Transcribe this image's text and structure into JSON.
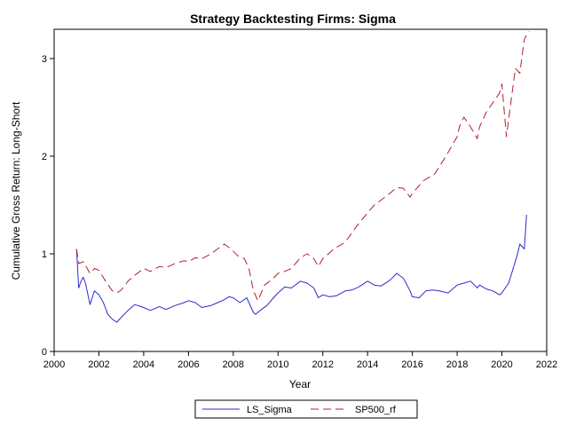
{
  "chart_data": {
    "type": "line",
    "title": "Strategy Backtesting  Firms: Sigma",
    "xlabel": "Year",
    "ylabel": "Cumulative Gross Return: Long-Short",
    "xlim": [
      2000,
      2022
    ],
    "ylim": [
      0,
      3.3
    ],
    "x_ticks": [
      2000,
      2002,
      2004,
      2006,
      2008,
      2010,
      2012,
      2014,
      2016,
      2018,
      2020,
      2022
    ],
    "y_ticks": [
      0,
      1,
      2,
      3
    ],
    "grid": false,
    "legend_position": "bottom",
    "series": [
      {
        "name": "LS_Sigma",
        "color": "#2b2bd0",
        "style": "solid",
        "x": [
          2001.0,
          2001.1,
          2001.2,
          2001.3,
          2001.4,
          2001.6,
          2001.8,
          2002.0,
          2002.2,
          2002.4,
          2002.6,
          2002.8,
          2003.0,
          2003.3,
          2003.6,
          2004.0,
          2004.3,
          2004.7,
          2005.0,
          2005.4,
          2005.8,
          2006.0,
          2006.3,
          2006.6,
          2007.0,
          2007.3,
          2007.6,
          2007.8,
          2008.0,
          2008.3,
          2008.6,
          2008.9,
          2009.0,
          2009.2,
          2009.5,
          2009.8,
          2010.0,
          2010.3,
          2010.6,
          2011.0,
          2011.3,
          2011.6,
          2011.8,
          2012.0,
          2012.3,
          2012.6,
          2013.0,
          2013.3,
          2013.6,
          2014.0,
          2014.3,
          2014.6,
          2015.0,
          2015.3,
          2015.6,
          2015.9,
          2016.0,
          2016.3,
          2016.6,
          2016.9,
          2017.2,
          2017.6,
          2018.0,
          2018.3,
          2018.6,
          2018.9,
          2019.0,
          2019.3,
          2019.6,
          2019.9,
          2020.0,
          2020.3,
          2020.5,
          2020.7,
          2020.8,
          2021.0,
          2021.1
        ],
        "values": [
          1.05,
          0.65,
          0.72,
          0.76,
          0.7,
          0.48,
          0.62,
          0.58,
          0.5,
          0.38,
          0.33,
          0.3,
          0.35,
          0.42,
          0.48,
          0.45,
          0.42,
          0.46,
          0.43,
          0.47,
          0.5,
          0.52,
          0.5,
          0.45,
          0.47,
          0.5,
          0.53,
          0.56,
          0.55,
          0.5,
          0.55,
          0.4,
          0.38,
          0.42,
          0.47,
          0.55,
          0.6,
          0.66,
          0.65,
          0.72,
          0.7,
          0.65,
          0.55,
          0.58,
          0.56,
          0.57,
          0.62,
          0.63,
          0.66,
          0.72,
          0.68,
          0.67,
          0.73,
          0.8,
          0.75,
          0.62,
          0.56,
          0.55,
          0.62,
          0.63,
          0.62,
          0.6,
          0.68,
          0.7,
          0.72,
          0.65,
          0.68,
          0.64,
          0.62,
          0.58,
          0.6,
          0.7,
          0.85,
          1.0,
          1.1,
          1.05,
          1.4
        ]
      },
      {
        "name": "SP500_rf",
        "color": "#b02030",
        "style": "dashed",
        "x": [
          2001.0,
          2001.1,
          2001.3,
          2001.6,
          2001.8,
          2002.0,
          2002.3,
          2002.6,
          2002.8,
          2003.0,
          2003.3,
          2003.6,
          2004.0,
          2004.3,
          2004.7,
          2005.0,
          2005.4,
          2005.8,
          2006.0,
          2006.3,
          2006.6,
          2007.0,
          2007.3,
          2007.6,
          2007.9,
          2008.2,
          2008.5,
          2008.7,
          2008.9,
          2009.1,
          2009.4,
          2009.8,
          2010.0,
          2010.3,
          2010.6,
          2011.0,
          2011.3,
          2011.6,
          2011.8,
          2012.0,
          2012.5,
          2013.0,
          2013.5,
          2014.0,
          2014.3,
          2014.6,
          2015.0,
          2015.3,
          2015.6,
          2015.9,
          2016.0,
          2016.5,
          2017.0,
          2017.5,
          2018.0,
          2018.1,
          2018.3,
          2018.6,
          2018.9,
          2019.0,
          2019.3,
          2019.6,
          2019.9,
          2020.0,
          2020.2,
          2020.4,
          2020.6,
          2020.8,
          2021.0,
          2021.2
        ],
        "values": [
          1.05,
          0.9,
          0.92,
          0.8,
          0.85,
          0.83,
          0.72,
          0.62,
          0.6,
          0.63,
          0.72,
          0.78,
          0.85,
          0.82,
          0.87,
          0.86,
          0.9,
          0.93,
          0.92,
          0.96,
          0.95,
          1.0,
          1.05,
          1.1,
          1.05,
          0.98,
          0.95,
          0.85,
          0.62,
          0.52,
          0.68,
          0.75,
          0.8,
          0.82,
          0.85,
          0.96,
          1.0,
          0.95,
          0.87,
          0.95,
          1.05,
          1.12,
          1.28,
          1.42,
          1.5,
          1.55,
          1.62,
          1.68,
          1.67,
          1.58,
          1.62,
          1.75,
          1.82,
          2.0,
          2.2,
          2.3,
          2.4,
          2.3,
          2.18,
          2.3,
          2.45,
          2.55,
          2.65,
          2.74,
          2.2,
          2.55,
          2.9,
          2.85,
          3.2,
          3.28
        ]
      }
    ]
  }
}
